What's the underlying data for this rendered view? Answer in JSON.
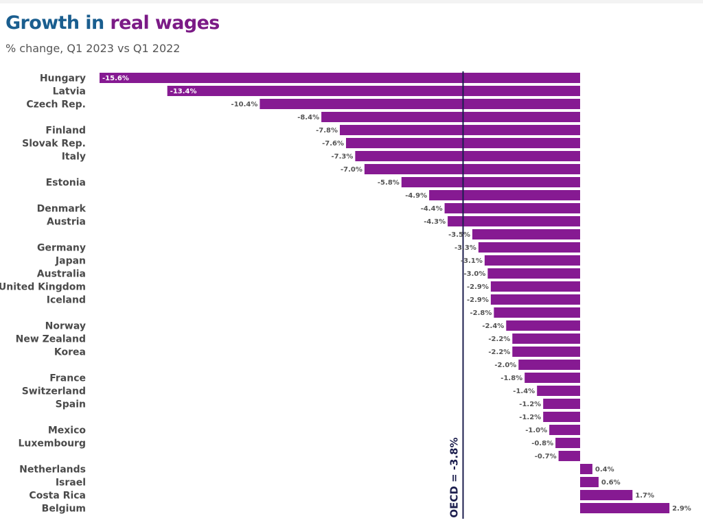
{
  "header": {
    "title_part1": "Growth in",
    "title_part2": "real wages",
    "subtitle": "% change, Q1 2023 vs Q1 2022"
  },
  "colors": {
    "title_blue": "#1a5e8f",
    "title_purple": "#7b1a86",
    "bar": "#861a92",
    "reference_line": "#1b1d4d"
  },
  "chart_data": {
    "type": "bar",
    "orientation": "horizontal",
    "title": "Growth in real wages",
    "subtitle": "% change, Q1 2023 vs Q1 2022",
    "categories": [
      "Hungary",
      "Latvia",
      "Czech Rep.",
      "",
      "Finland",
      "Slovak Rep.",
      "Italy",
      "",
      "Estonia",
      "",
      "Denmark",
      "Austria",
      "",
      "Germany",
      "Japan",
      "Australia",
      "United Kingdom",
      "Iceland",
      "",
      "Norway",
      "New Zealand",
      "Korea",
      "",
      "France",
      "Switzerland",
      "Spain",
      "",
      "Mexico",
      "Luxembourg",
      "",
      "Netherlands",
      "Israel",
      "Costa Rica",
      "Belgium"
    ],
    "values": [
      -15.6,
      -13.4,
      -10.4,
      -8.4,
      -7.8,
      -7.6,
      -7.3,
      -7.0,
      -5.8,
      -4.9,
      -4.4,
      -4.3,
      -3.5,
      -3.3,
      -3.1,
      -3.0,
      -2.9,
      -2.9,
      -2.8,
      -2.4,
      -2.2,
      -2.2,
      -2.0,
      -1.8,
      -1.4,
      -1.2,
      -1.2,
      -1.0,
      -0.8,
      -0.7,
      0.4,
      0.6,
      1.7,
      2.9
    ],
    "value_labels": [
      "-15.6%",
      "-13.4%",
      "-10.4%",
      "-8.4%",
      "-7.8%",
      "-7.6%",
      "-7.3%",
      "-7.0%",
      "-5.8%",
      "-4.9%",
      "-4.4%",
      "-4.3%",
      "-3.5%",
      "-3.3%",
      "-3.1%",
      "-3.0%",
      "-2.9%",
      "-2.9%",
      "-2.8%",
      "-2.4%",
      "-2.2%",
      "-2.2%",
      "-2.0%",
      "-1.8%",
      "-1.4%",
      "-1.2%",
      "-1.2%",
      "-1.0%",
      "-0.8%",
      "-0.7%",
      "0.4%",
      "0.6%",
      "1.7%",
      "2.9%"
    ],
    "reference_line": {
      "value": -3.8,
      "label": "OECD = -3.8%"
    },
    "xlim": [
      -15.6,
      2.9
    ],
    "grid": false,
    "legend": "none"
  }
}
